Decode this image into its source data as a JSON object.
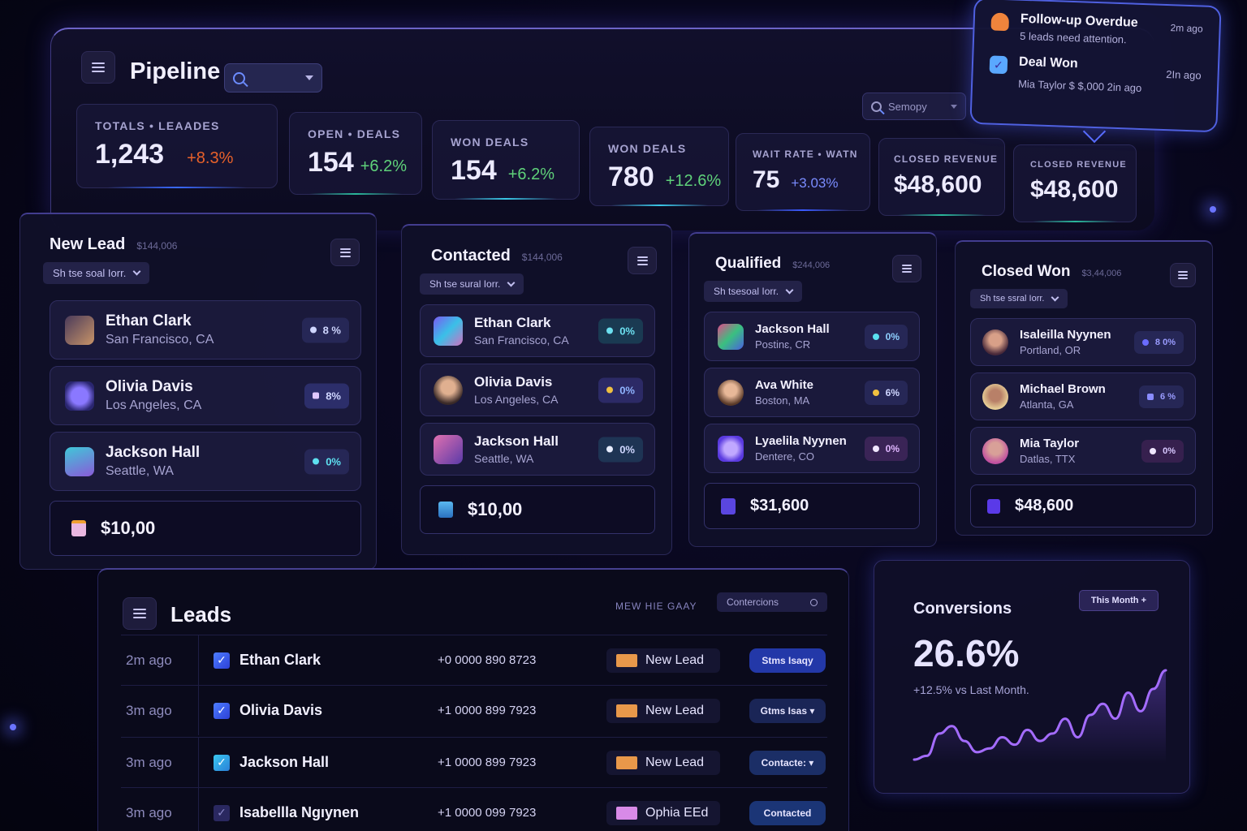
{
  "header": {
    "title": "Pipeline",
    "search_placeholder": "",
    "secondary_search": "Semopy"
  },
  "stats": [
    {
      "label": "TOTALS  •  LEAADES",
      "value": "1,243",
      "delta": "+8.3%",
      "delta_color": "#e8612a"
    },
    {
      "label": "OPEN  •  DEALS",
      "value": "154",
      "delta": "+6.2%",
      "delta_color": "#5fd27a"
    },
    {
      "label": "WON DEALS",
      "value": "154",
      "delta": "+6.2%",
      "delta_color": "#5fd27a"
    },
    {
      "label": "WON DEALS",
      "value": "780",
      "delta": "+12.6%",
      "delta_color": "#5fd27a"
    },
    {
      "label": "WAIT RATE  •  WATN",
      "value": "75",
      "delta": "+3.03%",
      "delta_color": "#7a8cff"
    },
    {
      "label": "CLOSED REVENUE",
      "value": "$48,600",
      "delta": "",
      "delta_color": ""
    },
    {
      "label": "CLOSED REVENUE",
      "value": "$48,600",
      "delta": "",
      "delta_color": ""
    }
  ],
  "notifications": [
    {
      "title": "Follow-up Overdue",
      "subtitle": "5 leads need attention.",
      "time": "2m ago",
      "icon": "user-alert-icon",
      "icon_color": "#f0843c"
    },
    {
      "title": "Deal Won",
      "subtitle": "Mia Taylor $ $,000 2in ago",
      "time": "2In ago",
      "icon": "check-badge-icon",
      "icon_color": "#5aa8ff"
    }
  ],
  "columns": [
    {
      "title": "New Lead",
      "amount": "$144,006",
      "filter": "Sh tse soal  Iorr.",
      "leads": [
        {
          "name": "Ethan Clark",
          "location": "San Francisco, CA",
          "badge": "8 %",
          "avatar_color": "#8a5a3a",
          "badge_color": "#8fb4ff"
        },
        {
          "name": "Olivia Davis",
          "location": "Los Angeles, CA",
          "badge": "8%",
          "avatar_color": "#7b6cf0",
          "badge_color": "#b9b6ff"
        },
        {
          "name": "Jackson Hall",
          "location": "Seattle, WA",
          "badge": "0%",
          "avatar_color": "#3fb8c8",
          "badge_color": "#5ee0f0"
        }
      ],
      "total": "$10,00",
      "total_icon_color": "#e9b7e0"
    },
    {
      "title": "Contacted",
      "amount": "$144,006",
      "filter": "Sh tse sural  Iorr.",
      "leads": [
        {
          "name": "Ethan Clark",
          "location": "San Francisco, CA",
          "badge": "0%",
          "avatar_color": "#5b4ad8",
          "badge_color": "#6ce0f0"
        },
        {
          "name": "Olivia Davis",
          "location": "Los Angeles, CA",
          "badge": "0%",
          "avatar_color": "#8c6a5c",
          "badge_color": "#8fb4ff"
        },
        {
          "name": "Jackson Hall",
          "location": "Seattle, WA",
          "badge": "0%",
          "avatar_color": "#9b4aa8",
          "badge_color": "#cfd6ff"
        }
      ],
      "total": "$10,00",
      "total_icon_color": "#3a9ad8"
    },
    {
      "title": "Qualified",
      "amount": "$244,006",
      "filter": "Sh tsesoal  Iorr.",
      "leads": [
        {
          "name": "Jackson Hall",
          "location": "Postinɛ, CR",
          "badge": "0%",
          "avatar_color": "#3aa880",
          "badge_color": "#8fd0ff"
        },
        {
          "name": "Ava White",
          "location": "Boston, MA",
          "badge": "6%",
          "avatar_color": "#9a6a58",
          "badge_color": "#cfd6ff"
        },
        {
          "name": "Lyaelila Nyynen",
          "location": "Dentere, CO",
          "badge": "0%",
          "avatar_color": "#6a4ae8",
          "badge_color": "#e0b6ff"
        }
      ],
      "total": "$31,600",
      "total_icon_color": "#5a46e0"
    },
    {
      "title": "Closed Won",
      "amount": "$3,44,006",
      "filter": "Sh tse ssral  Iorr.",
      "leads": [
        {
          "name": "Isaleilla Nyynen",
          "location": "Portland, OR",
          "badge": "8 0%",
          "avatar_color": "#7a4a4a",
          "badge_color": "#9a9cff"
        },
        {
          "name": "Michael Brown",
          "location": "Atlanta, GA",
          "badge": "6 %",
          "avatar_color": "#c8a870",
          "badge_color": "#9a9cff"
        },
        {
          "name": "Mia Taylor",
          "location": "Datlas, TTX",
          "badge": "0%",
          "avatar_color": "#c060a8",
          "badge_color": "#d8c8ff"
        }
      ],
      "total": "$48,600",
      "total_icon_color": "#5a3ae8"
    }
  ],
  "leads_table": {
    "title": "Leads",
    "header_label": "MEW HIE GAAY",
    "filter_label": "Contercions",
    "rows": [
      {
        "time": "2m ago",
        "name": "Ethan Clark",
        "phone": "+0 0000 890 8723",
        "stage": "New Lead",
        "stage_color": "#e8984a",
        "status": "Stms Isaqy",
        "status_bg": "#2338a8"
      },
      {
        "time": "3m ago",
        "name": "Olivia Davis",
        "phone": "+1 0000 899 7923",
        "stage": "New Lead",
        "stage_color": "#e8984a",
        "status": "Gtms Isas ▾",
        "status_bg": "#1a2556"
      },
      {
        "time": "3m ago",
        "name": "Jackson Hall",
        "phone": "+1 0000 899 7923",
        "stage": "New Lead",
        "stage_color": "#e8984a",
        "status": "Contacte: ▾",
        "status_bg": "#1b2e66"
      },
      {
        "time": "3m ago",
        "name": "Isabellla Ngıynen",
        "phone": "+1 0000 099 7923",
        "stage": "Ophia EEd",
        "stage_color": "#d88ae8",
        "status": "Contacted",
        "status_bg": "#1b3576"
      }
    ]
  },
  "conversions": {
    "title": "Conversions",
    "value": "26.6%",
    "subtitle": "+12.5% vs Last Month.",
    "range_button": "This Month  +"
  },
  "chart_data": {
    "type": "line",
    "title": "Conversions",
    "x": [
      0,
      1,
      2,
      3,
      4,
      5,
      6,
      7,
      8,
      9,
      10,
      11,
      12,
      13,
      14,
      15,
      16,
      17,
      18,
      19,
      20
    ],
    "values": [
      2,
      3,
      9,
      11,
      7,
      4,
      5,
      8,
      6,
      10,
      7,
      9,
      13,
      8,
      14,
      17,
      13,
      20,
      15,
      21,
      26
    ],
    "xlabel": "",
    "ylabel": "",
    "grid": false,
    "color": "#a46cff"
  }
}
